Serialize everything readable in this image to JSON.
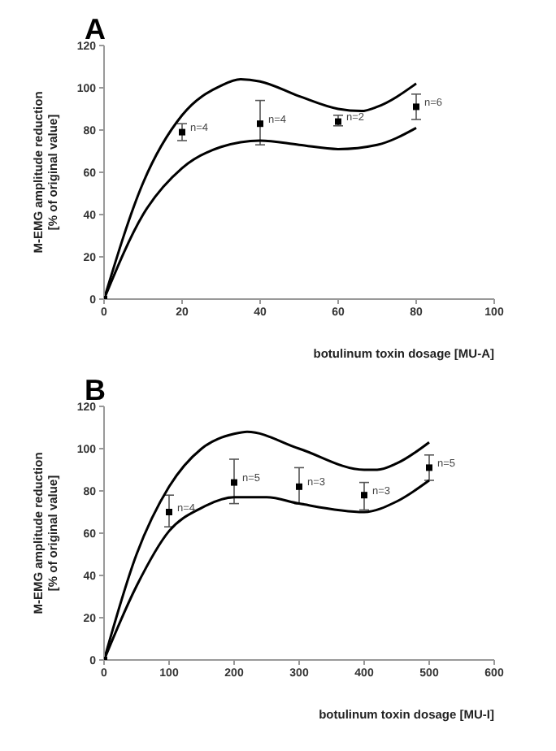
{
  "chart_data": [
    {
      "type": "scatter",
      "title": "A",
      "xlabel": "botulinum toxin dosage [MU-A]",
      "ylabel": "M-EMG amplitude reduction [% of original value]",
      "xlim": [
        0,
        100
      ],
      "xticks": [
        0,
        20,
        40,
        60,
        80,
        100
      ],
      "ylim": [
        0,
        120
      ],
      "yticks": [
        0,
        20,
        40,
        60,
        80,
        100,
        120
      ],
      "grid": false,
      "legend": false,
      "series": [
        {
          "color": "#000000",
          "marker": "square",
          "x": [
            0,
            20,
            40,
            60,
            80
          ],
          "values": [
            0,
            79,
            83,
            84,
            91
          ],
          "errors": [
            null,
            [
              75,
              83
            ],
            [
              73,
              94
            ],
            [
              82,
              87
            ],
            [
              85,
              97
            ]
          ]
        },
        {
          "type": "line",
          "color": "#000000",
          "x": [
            0,
            10,
            20,
            30,
            35,
            40,
            50,
            60,
            66,
            70,
            80
          ],
          "values": [
            0,
            55,
            87,
            101,
            104,
            103,
            96,
            90,
            89,
            91,
            102
          ]
        },
        {
          "type": "line",
          "color": "#000000",
          "x": [
            0,
            10,
            20,
            30,
            40,
            50,
            60,
            70,
            80
          ],
          "values": [
            0,
            40,
            62,
            72,
            75,
            73,
            71,
            73,
            81
          ]
        }
      ],
      "annotations": [
        {
          "text": "n=4",
          "x": 20,
          "y": 79
        },
        {
          "text": "n=4",
          "x": 40,
          "y": 83
        },
        {
          "text": "n=2",
          "x": 60,
          "y": 84
        },
        {
          "text": "n=6",
          "x": 80,
          "y": 91
        }
      ]
    },
    {
      "type": "scatter",
      "title": "B",
      "xlabel": "botulinum toxin dosage [MU-I]",
      "ylabel": "M-EMG amplitude reduction [% of original value]",
      "xlim": [
        0,
        600
      ],
      "xticks": [
        0,
        100,
        200,
        300,
        400,
        500,
        600
      ],
      "ylim": [
        0,
        120
      ],
      "yticks": [
        0,
        20,
        40,
        60,
        80,
        100,
        120
      ],
      "grid": false,
      "legend": false,
      "series": [
        {
          "color": "#000000",
          "marker": "square",
          "x": [
            0,
            100,
            200,
            300,
            400,
            500
          ],
          "values": [
            0,
            70,
            84,
            82,
            78,
            91
          ],
          "errors": [
            null,
            [
              63,
              78
            ],
            [
              74,
              95
            ],
            [
              74,
              91
            ],
            [
              71,
              84
            ],
            [
              85,
              97
            ]
          ]
        },
        {
          "type": "line",
          "color": "#000000",
          "x": [
            0,
            50,
            100,
            150,
            200,
            220,
            300,
            400,
            420,
            450,
            500
          ],
          "values": [
            0,
            50,
            82,
            100,
            107,
            108,
            100,
            90,
            90,
            93,
            103
          ]
        },
        {
          "type": "line",
          "color": "#000000",
          "x": [
            0,
            50,
            100,
            150,
            200,
            250,
            300,
            400,
            450,
            500
          ],
          "values": [
            0,
            35,
            61,
            72,
            77,
            77,
            74,
            70,
            75,
            85
          ]
        }
      ],
      "annotations": [
        {
          "text": "n=4",
          "x": 100,
          "y": 70
        },
        {
          "text": "n=5",
          "x": 200,
          "y": 84
        },
        {
          "text": "n=3",
          "x": 300,
          "y": 82
        },
        {
          "text": "n=3",
          "x": 400,
          "y": 78
        },
        {
          "text": "n=5",
          "x": 500,
          "y": 91
        }
      ]
    }
  ]
}
